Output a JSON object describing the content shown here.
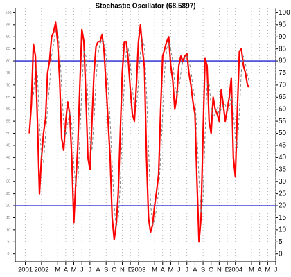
{
  "chart_data": {
    "type": "line",
    "title": "Stochastic Oscillator (68.5897)",
    "x": [
      -1.5,
      -1.25,
      -1,
      -0.75,
      -0.5,
      -0.25,
      0,
      0.25,
      0.5,
      0.75,
      1,
      1.25,
      1.5,
      1.75,
      2,
      2.25,
      2.5,
      2.75,
      3,
      3.25,
      3.5,
      3.75,
      4,
      4.25,
      4.5,
      4.75,
      5,
      5.25,
      5.5,
      5.75,
      6,
      6.25,
      6.5,
      6.75,
      7,
      7.25,
      7.5,
      7.75,
      8,
      8.25,
      8.5,
      8.75,
      9,
      9.25,
      9.5,
      9.75,
      10,
      10.25,
      10.5,
      10.75,
      11,
      11.25,
      11.5,
      11.75,
      12,
      12.25,
      12.5,
      12.75,
      13,
      13.25,
      13.5,
      13.75,
      14,
      14.25,
      14.5,
      14.75,
      15,
      15.25,
      15.5,
      15.75,
      16,
      16.25,
      16.5,
      16.75,
      17,
      17.25,
      17.5,
      17.75,
      18,
      18.25,
      18.5,
      18.75,
      19,
      19.25,
      19.5,
      19.75,
      20,
      20.25,
      20.5,
      20.75,
      21,
      21.25,
      21.5,
      21.75,
      22,
      22.25,
      22.5,
      22.75,
      23,
      23.25,
      23.5,
      23.75,
      24,
      24.25,
      24.5,
      24.75,
      25,
      25.25,
      25.5,
      25.75
    ],
    "series": [
      {
        "color": "#ff0000",
        "width": 2.2,
        "dashed": false,
        "values": [
          50,
          62,
          87,
          82,
          55,
          25,
          40,
          50,
          56,
          75,
          80,
          90,
          92,
          96,
          88,
          72,
          48,
          43,
          55,
          63,
          58,
          40,
          13,
          30,
          45,
          70,
          93,
          88,
          65,
          40,
          35,
          55,
          75,
          86,
          88,
          88,
          91,
          84,
          70,
          55,
          40,
          15,
          6,
          12,
          25,
          50,
          75,
          88,
          88,
          80,
          68,
          58,
          55,
          70,
          88,
          95,
          85,
          77,
          40,
          15,
          9,
          12,
          20,
          26,
          33,
          60,
          82,
          85,
          88,
          90,
          78,
          72,
          60,
          65,
          78,
          82,
          80,
          82,
          83,
          75,
          70,
          63,
          58,
          30,
          5,
          15,
          50,
          81,
          78,
          55,
          50,
          65,
          60,
          58,
          55,
          68,
          62,
          55,
          60,
          65,
          73,
          40,
          32,
          60,
          84,
          85,
          78,
          75,
          70,
          69
        ]
      },
      {
        "color": "#808080",
        "width": 1,
        "dashed": true,
        "values": [
          null,
          null,
          66,
          77,
          75,
          54,
          40,
          38,
          49,
          60,
          70,
          82,
          87,
          93,
          92,
          85,
          69,
          54,
          49,
          54,
          59,
          54,
          37,
          28,
          29,
          48,
          69,
          84,
          82,
          64,
          47,
          43,
          55,
          72,
          83,
          87,
          89,
          88,
          82,
          70,
          55,
          37,
          20,
          11,
          14,
          29,
          50,
          71,
          84,
          85,
          79,
          69,
          60,
          61,
          71,
          84,
          89,
          86,
          67,
          44,
          21,
          12,
          14,
          19,
          26,
          40,
          58,
          76,
          85,
          88,
          85,
          80,
          70,
          66,
          68,
          75,
          80,
          81,
          82,
          80,
          76,
          69,
          64,
          50,
          31,
          17,
          23,
          49,
          70,
          71,
          61,
          57,
          58,
          61,
          58,
          60,
          62,
          62,
          59,
          60,
          66,
          59,
          48,
          44,
          59,
          76,
          82,
          79,
          74,
          71
        ]
      }
    ],
    "xlim": [
      -3.25,
      29
    ],
    "xticks": [
      {
        "value": -2,
        "label": "2001"
      },
      {
        "value": 0,
        "label": "2002"
      },
      {
        "value": 2,
        "label": "M"
      },
      {
        "value": 3,
        "label": "A"
      },
      {
        "value": 4,
        "label": "M"
      },
      {
        "value": 5,
        "label": "J"
      },
      {
        "value": 6,
        "label": "J"
      },
      {
        "value": 7,
        "label": "A"
      },
      {
        "value": 8,
        "label": "S"
      },
      {
        "value": 9,
        "label": "O"
      },
      {
        "value": 10,
        "label": "N"
      },
      {
        "value": 11,
        "label": "D"
      },
      {
        "value": 12,
        "label": "2003"
      },
      {
        "value": 14,
        "label": "M"
      },
      {
        "value": 15,
        "label": "A"
      },
      {
        "value": 16,
        "label": "M"
      },
      {
        "value": 17,
        "label": "J"
      },
      {
        "value": 18,
        "label": "J"
      },
      {
        "value": 19,
        "label": "A"
      },
      {
        "value": 20,
        "label": "S"
      },
      {
        "value": 21,
        "label": "O"
      },
      {
        "value": 22,
        "label": "N"
      },
      {
        "value": 23,
        "label": "D"
      },
      {
        "value": 24,
        "label": "2004"
      },
      {
        "value": 26,
        "label": "M"
      },
      {
        "value": 27,
        "label": "A"
      },
      {
        "value": 28,
        "label": "M"
      },
      {
        "value": 29,
        "label": "J"
      }
    ],
    "ylim": [
      0,
      100
    ],
    "yticks": [
      0,
      5,
      10,
      15,
      20,
      25,
      30,
      35,
      40,
      45,
      50,
      55,
      60,
      65,
      70,
      75,
      80,
      85,
      90,
      95,
      100
    ],
    "hlines": [
      80,
      20
    ],
    "hline_color": "#2020d0",
    "grid": true
  }
}
